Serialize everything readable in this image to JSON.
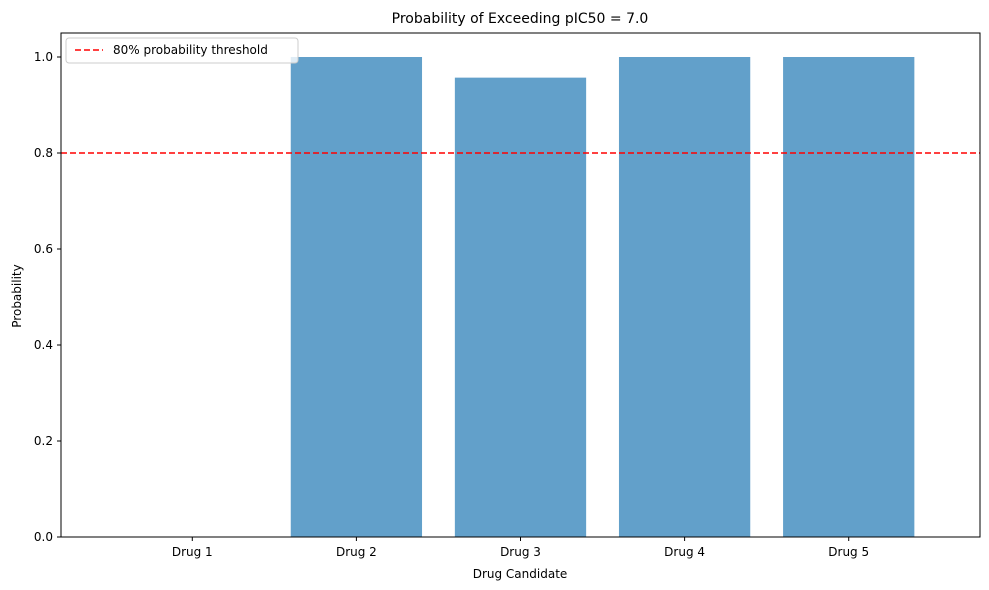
{
  "chart_data": {
    "type": "bar",
    "title": "Probability of Exceeding pIC50 = 7.0",
    "xlabel": "Drug Candidate",
    "ylabel": "Probability",
    "categories": [
      "Drug 1",
      "Drug 2",
      "Drug 3",
      "Drug 4",
      "Drug 5"
    ],
    "values": [
      0.0,
      1.0,
      0.957,
      1.0,
      1.0
    ],
    "ylim": [
      0,
      1.05
    ],
    "yticks": [
      0.0,
      0.2,
      0.4,
      0.6,
      0.8,
      1.0
    ],
    "ytick_labels": [
      "0.0",
      "0.2",
      "0.4",
      "0.6",
      "0.8",
      "1.0"
    ],
    "bar_color": "#1f77b4",
    "bar_alpha": 0.7,
    "threshold": {
      "value": 0.8,
      "label": "80% probability threshold",
      "color": "#ff0000",
      "style": "dashed"
    },
    "legend": {
      "placement": "top-left"
    },
    "grid": false
  }
}
